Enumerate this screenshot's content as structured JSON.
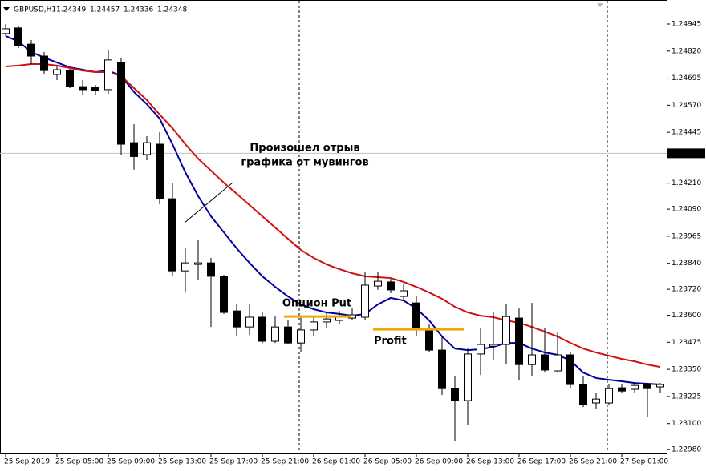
{
  "chart_data": {
    "type": "candlestick",
    "symbol": "GBPUSD,H1",
    "header_values": [
      1.24349,
      1.24457,
      1.24336,
      1.24348
    ],
    "current_price": 1.24348,
    "categories": [
      "25 Sep 2019",
      null,
      null,
      null,
      "25 Sep 05:00",
      null,
      null,
      null,
      "25 Sep 09:00",
      null,
      null,
      null,
      "25 Sep 13:00",
      null,
      null,
      null,
      "25 Sep 17:00",
      null,
      null,
      null,
      "25 Sep 21:00",
      null,
      null,
      null,
      "26 Sep 01:00",
      null,
      null,
      null,
      "26 Sep 05:00",
      null,
      null,
      null,
      "26 Sep 09:00",
      null,
      null,
      null,
      "26 Sep 13:00",
      null,
      null,
      null,
      "26 Sep 17:00",
      null,
      null,
      null,
      "26 Sep 21:00",
      null,
      null,
      null,
      "27 Sep 01:00",
      null,
      null,
      null
    ],
    "open": [
      1.24901,
      1.24927,
      1.24852,
      1.24797,
      1.24712,
      1.2473,
      1.24656,
      1.24653,
      1.24642,
      1.24767,
      1.24397,
      1.24342,
      1.2439,
      1.24138,
      1.23805,
      1.23835,
      1.23842,
      1.2378,
      1.2362,
      1.23546,
      1.23591,
      1.2348,
      1.23546,
      1.23472,
      1.23532,
      1.23569,
      1.23576,
      1.23587,
      1.23591,
      1.23735,
      1.23754,
      1.23687,
      1.23657,
      1.23532,
      1.23439,
      1.23261,
      1.23206,
      1.23421,
      1.23457,
      1.23465,
      1.23587,
      1.23372,
      1.23417,
      1.23343,
      1.23417,
      1.2328,
      1.23195,
      1.23195,
      1.23265,
      1.23258,
      1.2328,
      1.23269
    ],
    "high": [
      1.24945,
      1.24934,
      1.24871,
      1.24816,
      1.24753,
      1.24738,
      1.24686,
      1.24664,
      1.24827,
      1.2479,
      1.24482,
      1.24427,
      1.24446,
      1.24212,
      1.23909,
      1.23946,
      1.23865,
      1.23787,
      1.2365,
      1.2365,
      1.23613,
      1.23594,
      1.23576,
      1.23594,
      1.23594,
      1.23613,
      1.2362,
      1.23631,
      1.23798,
      1.23798,
      1.23768,
      1.23742,
      1.23687,
      1.23557,
      1.23502,
      1.23317,
      1.23446,
      1.23539,
      1.23613,
      1.2365,
      1.23631,
      1.23657,
      1.23539,
      1.2352,
      1.23428,
      1.23317,
      1.23243,
      1.2328,
      1.2328,
      1.23287,
      1.23287,
      1.23287
    ],
    "low": [
      1.2489,
      1.24834,
      1.2476,
      1.24712,
      1.24686,
      1.24649,
      1.24619,
      1.24619,
      1.24623,
      1.24342,
      1.24272,
      1.24316,
      1.24112,
      1.2378,
      1.23705,
      1.23761,
      1.23546,
      1.23606,
      1.23502,
      1.23509,
      1.23472,
      1.23472,
      1.23465,
      1.23428,
      1.23502,
      1.23539,
      1.23557,
      1.23576,
      1.23576,
      1.23717,
      1.23702,
      1.23668,
      1.23502,
      1.23428,
      1.23232,
      1.23021,
      1.23095,
      1.23324,
      1.23391,
      1.23372,
      1.23298,
      1.23317,
      1.23335,
      1.23335,
      1.23261,
      1.23176,
      1.23169,
      1.23187,
      1.23243,
      1.23243,
      1.23132,
      1.23243
    ],
    "close": [
      1.24923,
      1.24845,
      1.24797,
      1.2473,
      1.24734,
      1.24656,
      1.24642,
      1.24638,
      1.24779,
      1.2439,
      1.24333,
      1.24397,
      1.24138,
      1.23805,
      1.23842,
      1.23842,
      1.2378,
      1.23613,
      1.23546,
      1.23591,
      1.2348,
      1.23546,
      1.23472,
      1.23532,
      1.23569,
      1.23583,
      1.23591,
      1.23602,
      1.23739,
      1.23757,
      1.23717,
      1.23713,
      1.23532,
      1.23439,
      1.23261,
      1.23206,
      1.23421,
      1.23465,
      1.23465,
      1.23594,
      1.23372,
      1.23417,
      1.23347,
      1.23417,
      1.2328,
      1.23187,
      1.23213,
      1.23261,
      1.2325,
      1.23276,
      1.23261,
      1.2328
    ],
    "lines": [
      {
        "color": "#0000a0",
        "values": [
          1.2489,
          1.24864,
          1.24816,
          1.2479,
          1.24767,
          1.24745,
          1.24734,
          1.24723,
          1.2473,
          1.24705,
          1.24631,
          1.24575,
          1.24508,
          1.2439,
          1.2426,
          1.2415,
          1.24057,
          1.23983,
          1.23909,
          1.23842,
          1.2378,
          1.23731,
          1.23687,
          1.2365,
          1.23628,
          1.23613,
          1.23606,
          1.23598,
          1.23606,
          1.2365,
          1.2368,
          1.23668,
          1.23631,
          1.23576,
          1.23502,
          1.23446,
          1.23439,
          1.23443,
          1.23454,
          1.23472,
          1.23472,
          1.23446,
          1.23428,
          1.23417,
          1.23391,
          1.23335,
          1.2331,
          1.23302,
          1.23295,
          1.23287,
          1.23284,
          1.2328
        ]
      },
      {
        "color": "#d01010",
        "values": [
          1.24749,
          1.24753,
          1.2476,
          1.2476,
          1.24753,
          1.24742,
          1.2473,
          1.24723,
          1.24723,
          1.24705,
          1.24649,
          1.24594,
          1.24527,
          1.24464,
          1.2439,
          1.24323,
          1.24268,
          1.24212,
          1.24161,
          1.24109,
          1.24057,
          1.24005,
          1.23953,
          1.23902,
          1.23865,
          1.23835,
          1.23813,
          1.23794,
          1.2378,
          1.23776,
          1.23772,
          1.23754,
          1.23731,
          1.23705,
          1.23676,
          1.23639,
          1.23613,
          1.23598,
          1.23591,
          1.23576,
          1.23565,
          1.23546,
          1.23524,
          1.23502,
          1.23472,
          1.23446,
          1.23428,
          1.23413,
          1.23398,
          1.23387,
          1.23372,
          1.23361
        ]
      }
    ],
    "levels": [
      {
        "label": "Опцион Put",
        "value": 1.23594,
        "color": "#f0a800"
      },
      {
        "label": "Profit",
        "value": 1.23535,
        "color": "#f0a800"
      }
    ],
    "annotation": [
      "Произошел отрыв",
      "графика от мувингов"
    ],
    "ylim": [
      1.22962,
      1.25056
    ],
    "yticks": [
      1.24945,
      {
        "value": 1.2482,
        "label": "1.24820"
      },
      1.24695,
      {
        "value": 1.2457,
        "label": "1.24570"
      },
      1.24445,
      {
        "value": 1.2421,
        "label": "1.24210"
      },
      {
        "value": 1.2409,
        "label": "1.24090"
      },
      1.23965,
      {
        "value": 1.2384,
        "label": "1.23840"
      },
      {
        "value": 1.2372,
        "label": "1.23720"
      },
      {
        "value": 1.236,
        "label": "1.23600"
      },
      1.23475,
      {
        "value": 1.2335,
        "label": "1.23350"
      },
      1.23225,
      {
        "value": 1.231,
        "label": "1.23100"
      },
      {
        "value": 1.2298,
        "label": "1.22980"
      }
    ],
    "up_color": "#ffffff",
    "down_color": "#000000"
  }
}
